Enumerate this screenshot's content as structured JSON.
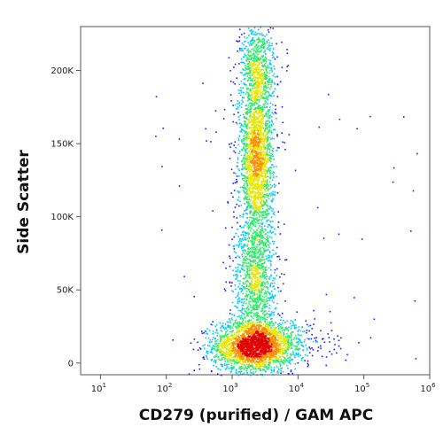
{
  "chart_data": {
    "type": "scatter",
    "title": "",
    "xlabel": "CD279 (purified) / GAM APC",
    "ylabel": "Side Scatter",
    "x_scale": "log",
    "xlim": [
      5,
      1000000
    ],
    "ylim": [
      -8000,
      230000
    ],
    "x_ticks": [
      {
        "value": 10,
        "base": "10",
        "exp": "1"
      },
      {
        "value": 100,
        "base": "10",
        "exp": "2"
      },
      {
        "value": 1000,
        "base": "10",
        "exp": "3"
      },
      {
        "value": 10000,
        "base": "10",
        "exp": "4"
      },
      {
        "value": 100000,
        "base": "10",
        "exp": "5"
      },
      {
        "value": 1000000,
        "base": "10",
        "exp": "6"
      }
    ],
    "y_ticks": [
      {
        "value": 0,
        "label": "0"
      },
      {
        "value": 50000,
        "label": "50K"
      },
      {
        "value": 100000,
        "label": "100K"
      },
      {
        "value": 150000,
        "label": "150K"
      },
      {
        "value": 200000,
        "label": "200K"
      }
    ],
    "grid": false,
    "density_colormap": [
      "#1a1aff",
      "#00c8ff",
      "#2ee86a",
      "#e6e600",
      "#ff8c00",
      "#e00000"
    ],
    "populations": [
      {
        "x_center": 2000,
        "y_center": 12000,
        "x_spread_log": 0.3,
        "y_spread": 9000,
        "weight": 0.34
      },
      {
        "x_center": 5000,
        "y_center": 13000,
        "x_spread_log": 0.4,
        "y_spread": 8000,
        "weight": 0.06
      },
      {
        "x_center": 2300,
        "y_center": 140000,
        "x_spread_log": 0.13,
        "y_spread": 32000,
        "weight": 0.36
      },
      {
        "x_center": 2200,
        "y_center": 55000,
        "x_spread_log": 0.16,
        "y_spread": 22000,
        "weight": 0.16
      },
      {
        "x_center": 2400,
        "y_center": 205000,
        "x_spread_log": 0.14,
        "y_spread": 14000,
        "weight": 0.08
      }
    ]
  }
}
